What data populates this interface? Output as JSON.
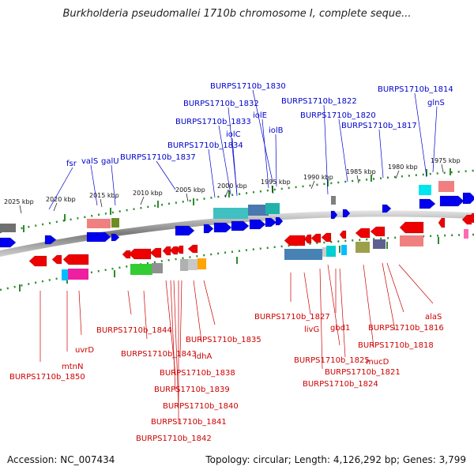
{
  "header": {
    "title": "Burkholderia pseudomallei 1710b chromosome I, complete seque..."
  },
  "footer": {
    "accession": "Accession: NC_007434",
    "topology": "Topology: circular; Length: 4,126,292 bp; Genes: 3,799"
  },
  "kbp_labels": [
    "2025 kbp",
    "2020 kbp",
    "2015 kbp",
    "2010 kbp",
    "2005 kbp",
    "2000 kbp",
    "1995 kbp",
    "1990 kbp",
    "1985 kbp",
    "1980 kbp",
    "1975 kbp"
  ],
  "top_gene_labels": [
    "BURPS1710b_1830",
    "BURPS1710b_1814",
    "BURPS1710b_1832",
    "BURPS1710b_1822",
    "glnS",
    "iolE",
    "BURPS1710b_1820",
    "BURPS1710b_1833",
    "BURPS1710b_1817",
    "iolC",
    "iolB",
    "BURPS1710b_1834",
    "fsr",
    "valS",
    "galU",
    "BURPS1710b_1837"
  ],
  "bottom_gene_labels": [
    "alaS",
    "BURPS1710b_1827",
    "BURPS1710b_1816",
    "livG",
    "gbd1",
    "BURPS1710b_1844",
    "BURPS1710b_1835",
    "BURPS1710b_1818",
    "uvrD",
    "BURPS1710b_1843",
    "idhA",
    "mucD",
    "BURPS1710b_1825",
    "mtnN",
    "BURPS1710b_1838",
    "BURPS1710b_1821",
    "BURPS1710b_1850",
    "BURPS1710b_1824",
    "BURPS1710b_1839",
    "BURPS1710b_1840",
    "BURPS1710b_1841",
    "BURPS1710b_1842"
  ],
  "colors": {
    "forward_gene": "#0000ee",
    "reverse_gene": "#ee0000",
    "top_label": "#0000cc",
    "bottom_label": "#cc0000",
    "backbone": "#8a8a8a",
    "tick": "#2e8b2e"
  }
}
